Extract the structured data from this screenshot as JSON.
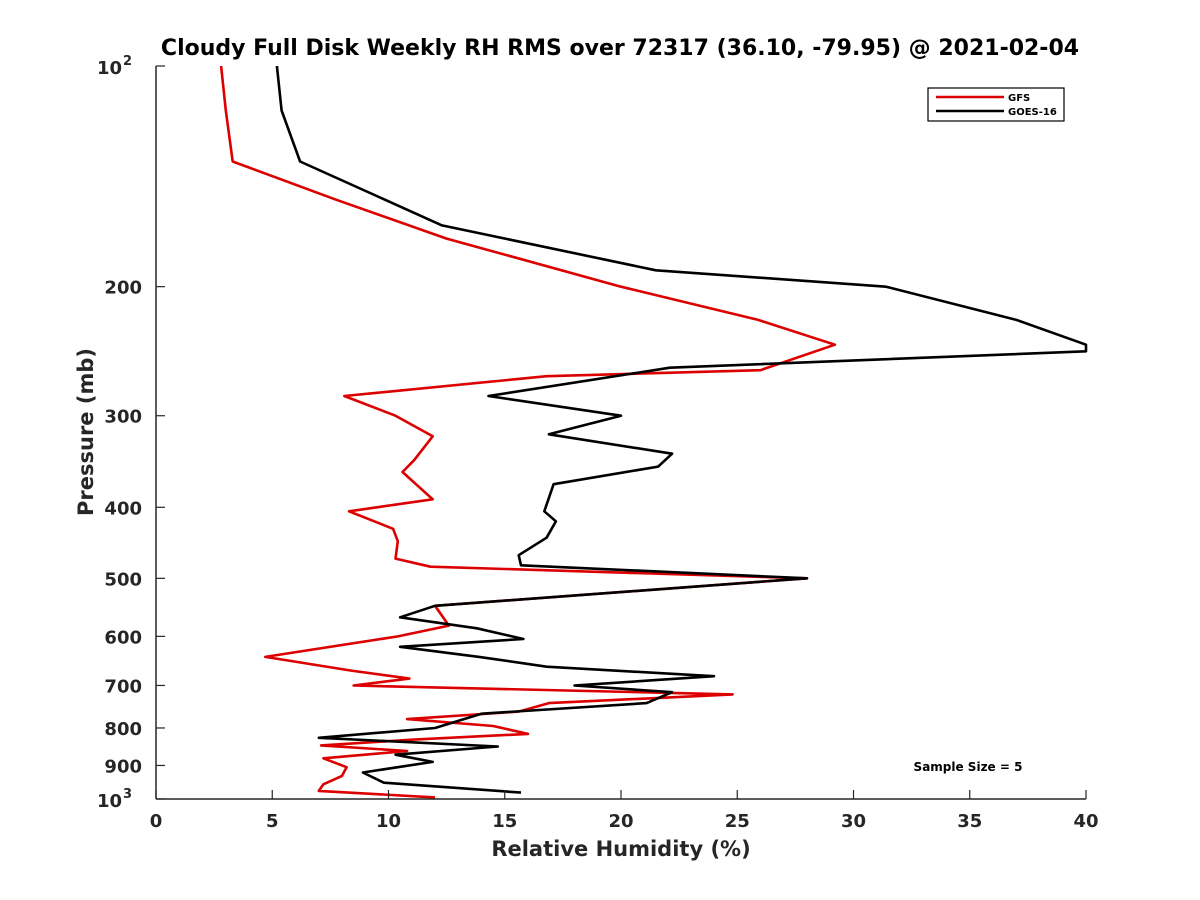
{
  "chart_data": {
    "type": "line",
    "title": "Cloudy Full Disk Weekly RH RMS over 72317 (36.10, -79.95) @ 2021-02-04",
    "xlabel": "Relative Humidity (%)",
    "ylabel": "Pressure (mb)",
    "xlim": [
      0,
      40
    ],
    "ylim": [
      100,
      1000
    ],
    "y_scale": "log",
    "y_reversed": true,
    "grid": false,
    "legend_position": "top-right",
    "annotation": "Sample Size = 5",
    "x_ticks": [
      "0",
      "5",
      "10",
      "15",
      "20",
      "25",
      "30",
      "35",
      "40"
    ],
    "y_ticks": [
      {
        "value": 100,
        "base": "10",
        "exp": "2"
      },
      {
        "value": 200,
        "label": "200"
      },
      {
        "value": 300,
        "label": "300"
      },
      {
        "value": 400,
        "label": "400"
      },
      {
        "value": 500,
        "label": "500"
      },
      {
        "value": 600,
        "label": "600"
      },
      {
        "value": 700,
        "label": "700"
      },
      {
        "value": 800,
        "label": "800"
      },
      {
        "value": 900,
        "label": "900"
      },
      {
        "value": 1000,
        "base": "10",
        "exp": "3"
      }
    ],
    "series": [
      {
        "name": "GFS",
        "color": "#dd0000",
        "points": [
          [
            2.8,
            100
          ],
          [
            3.0,
            115
          ],
          [
            3.3,
            135
          ],
          [
            7.7,
            152
          ],
          [
            12.5,
            172
          ],
          [
            20.0,
            200
          ],
          [
            25.9,
            222
          ],
          [
            29.2,
            240
          ],
          [
            26.0,
            260
          ],
          [
            16.8,
            265
          ],
          [
            8.1,
            282
          ],
          [
            10.3,
            300
          ],
          [
            11.9,
            320
          ],
          [
            11.1,
            345
          ],
          [
            10.6,
            358
          ],
          [
            11.9,
            390
          ],
          [
            8.3,
            405
          ],
          [
            10.2,
            428
          ],
          [
            10.4,
            445
          ],
          [
            10.3,
            470
          ],
          [
            11.8,
            482
          ],
          [
            28.0,
            500
          ],
          [
            12.0,
            545
          ],
          [
            12.6,
            580
          ],
          [
            10.4,
            600
          ],
          [
            4.7,
            640
          ],
          [
            8.4,
            668
          ],
          [
            10.9,
            685
          ],
          [
            8.5,
            700
          ],
          [
            24.8,
            720
          ],
          [
            16.9,
            740
          ],
          [
            15.6,
            760
          ],
          [
            10.8,
            778
          ],
          [
            14.5,
            795
          ],
          [
            16.0,
            815
          ],
          [
            11.0,
            830
          ],
          [
            7.1,
            845
          ],
          [
            10.8,
            860
          ],
          [
            7.2,
            880
          ],
          [
            8.2,
            905
          ],
          [
            8.0,
            930
          ],
          [
            7.2,
            955
          ],
          [
            7.0,
            975
          ],
          [
            12.0,
            995
          ]
        ]
      },
      {
        "name": "GOES-16",
        "color": "#000000",
        "points": [
          [
            5.2,
            100
          ],
          [
            5.4,
            115
          ],
          [
            6.2,
            135
          ],
          [
            12.3,
            165
          ],
          [
            21.5,
            190
          ],
          [
            31.4,
            200
          ],
          [
            37.0,
            222
          ],
          [
            40.0,
            240
          ],
          [
            40.0,
            245
          ],
          [
            22.1,
            258
          ],
          [
            14.3,
            282
          ],
          [
            20.0,
            300
          ],
          [
            16.9,
            318
          ],
          [
            22.2,
            338
          ],
          [
            21.6,
            352
          ],
          [
            17.1,
            372
          ],
          [
            16.7,
            405
          ],
          [
            17.2,
            418
          ],
          [
            16.8,
            440
          ],
          [
            15.6,
            465
          ],
          [
            15.7,
            480
          ],
          [
            28.0,
            500
          ],
          [
            12.0,
            545
          ],
          [
            10.5,
            565
          ],
          [
            13.8,
            585
          ],
          [
            15.8,
            605
          ],
          [
            10.5,
            620
          ],
          [
            13.9,
            640
          ],
          [
            16.8,
            660
          ],
          [
            24.0,
            680
          ],
          [
            18.0,
            700
          ],
          [
            22.2,
            715
          ],
          [
            21.1,
            740
          ],
          [
            14.0,
            765
          ],
          [
            12.0,
            800
          ],
          [
            7.0,
            825
          ],
          [
            14.7,
            848
          ],
          [
            10.3,
            870
          ],
          [
            11.9,
            890
          ],
          [
            8.9,
            920
          ],
          [
            9.8,
            950
          ],
          [
            15.7,
            980
          ]
        ]
      }
    ]
  }
}
